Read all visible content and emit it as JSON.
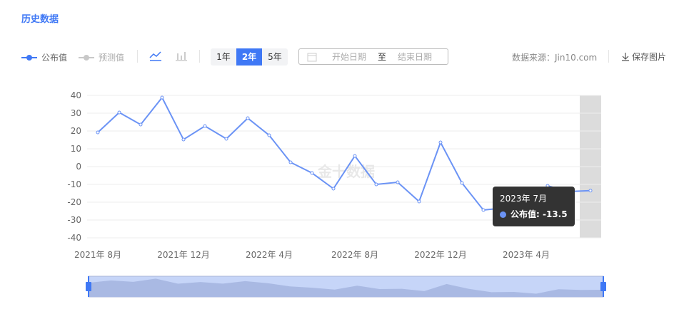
{
  "title": "历史数据",
  "legend": [
    {
      "label": "公布值",
      "color": "#3f78f5"
    },
    {
      "label": "预测值",
      "color": "#c8c8c8"
    }
  ],
  "chart_icons": [
    "line-chart-icon",
    "bar-chart-icon"
  ],
  "ranges": [
    "1年",
    "2年",
    "5年"
  ],
  "active_range": "2年",
  "date_range": {
    "start_placeholder": "开始日期",
    "separator": "至",
    "end_placeholder": "结束日期"
  },
  "source": "数据来源：Jin10.com",
  "save_label": "保存图片",
  "watermark": "金十数据",
  "tooltip": {
    "title": "2023年 7月",
    "label": "公布值: -13.5"
  },
  "chart_data": {
    "type": "line",
    "x": [
      "2021-08",
      "2021-09",
      "2021-10",
      "2021-11",
      "2021-12",
      "2022-01",
      "2022-02",
      "2022-03",
      "2022-04",
      "2022-05",
      "2022-06",
      "2022-07",
      "2022-08",
      "2022-09",
      "2022-10",
      "2022-11",
      "2022-12",
      "2023-01",
      "2023-02",
      "2023-03",
      "2023-04",
      "2023-05",
      "2023-06",
      "2023-07"
    ],
    "series": [
      {
        "name": "公布值",
        "color": "#6b93f5",
        "values": [
          19.2,
          30.4,
          23.6,
          38.8,
          15.2,
          22.8,
          15.6,
          27.2,
          17.6,
          2.4,
          -3.6,
          -12.4,
          6,
          -10,
          -8.8,
          -19.6,
          13.6,
          -9.2,
          -24.4,
          -23.2,
          -31.6,
          -10.8,
          -14,
          -13.5
        ]
      }
    ],
    "ylim": [
      -40,
      40
    ],
    "yticks": [
      40,
      30,
      20,
      10,
      0,
      -10,
      -20,
      -30,
      -40
    ],
    "xtick_labels": [
      "2021年 8月",
      "2021年 12月",
      "2022年 4月",
      "2022年 8月",
      "2022年 12月",
      "2023年 4月"
    ],
    "grid": true
  }
}
